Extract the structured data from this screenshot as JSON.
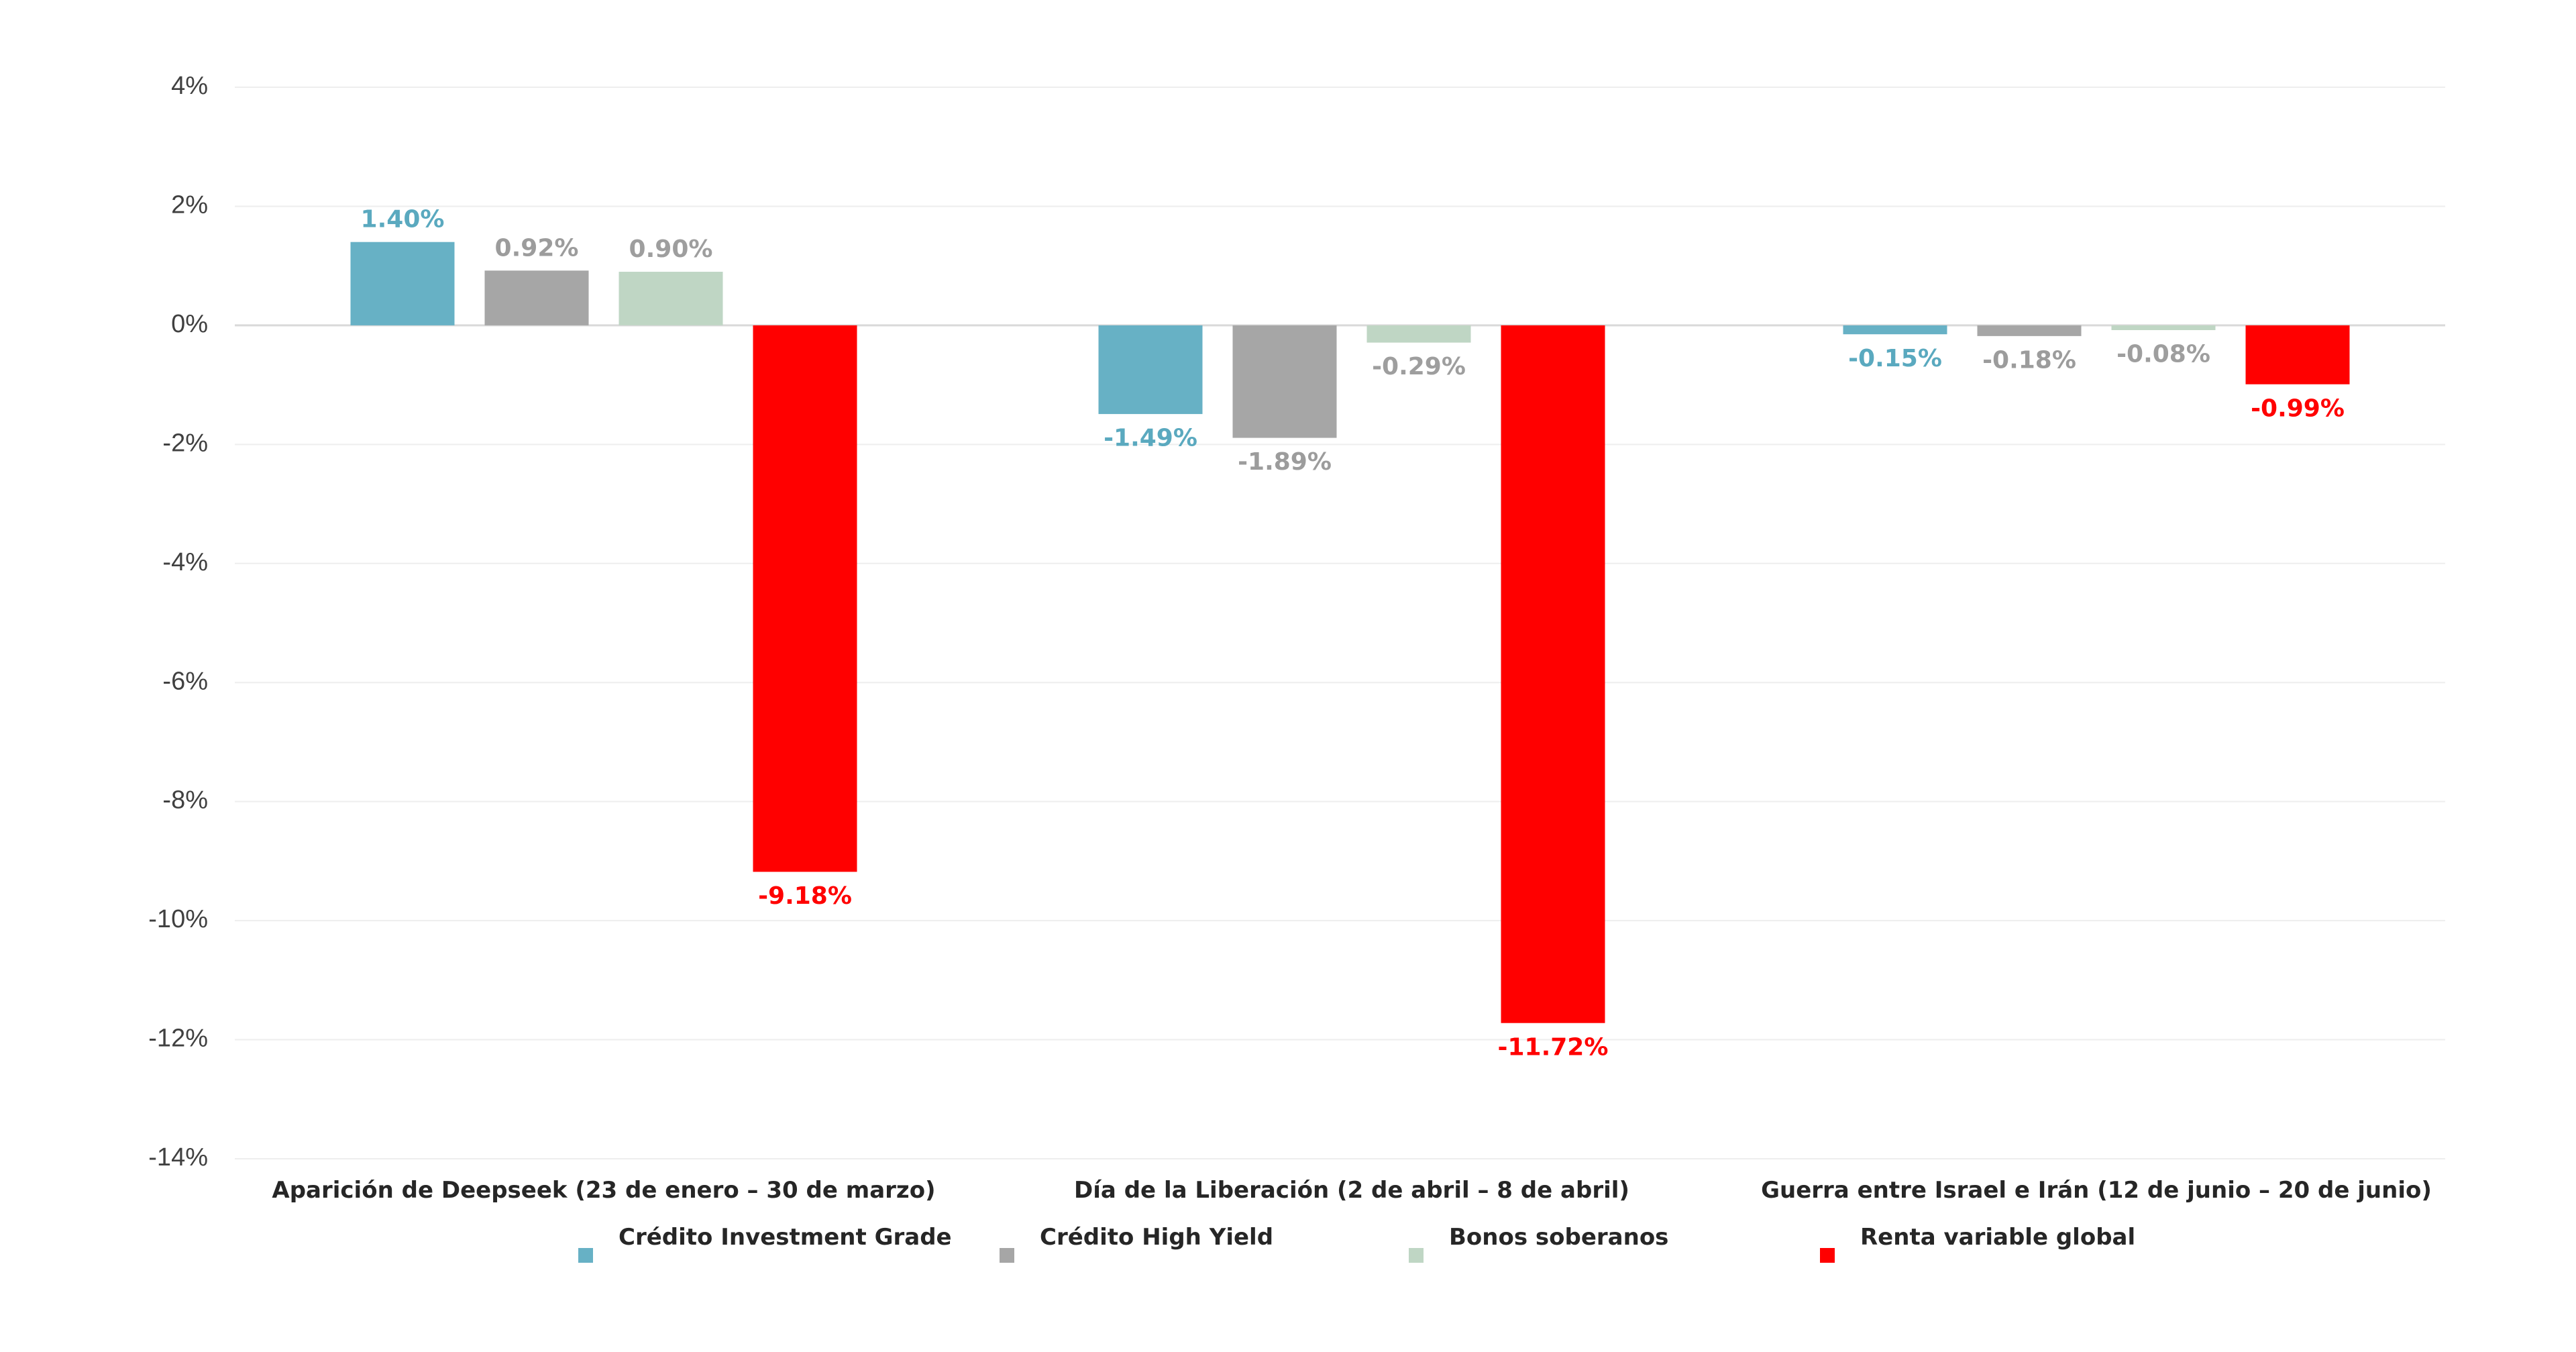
{
  "chart_data": {
    "type": "bar",
    "categories": [
      "Aparición de Deepseek (23 de enero – 30 de marzo)",
      "Día de la Liberación (2 de abril – 8 de abril)",
      "Guerra entre Israel e Irán (12  de junio – 20 de junio)"
    ],
    "series": [
      {
        "name": "Crédito Investment Grade",
        "color": "#67b1c5",
        "label_color": "#5aa9bf",
        "values": [
          1.4,
          -1.49,
          -0.15
        ],
        "labels": [
          "1.40%",
          "-1.49%",
          "-0.15%"
        ]
      },
      {
        "name": "Crédito High Yield",
        "color": "#a6a6a6",
        "label_color": "#9c9c9c",
        "values": [
          0.92,
          -1.89,
          -0.18
        ],
        "labels": [
          "0.92%",
          "-1.89%",
          "-0.18%"
        ]
      },
      {
        "name": "Bonos soberanos",
        "color": "#bfd6c4",
        "label_color": "#9e9e9e",
        "values": [
          0.9,
          -0.29,
          -0.08
        ],
        "labels": [
          "0.90%",
          "-0.29%",
          "-0.08%"
        ]
      },
      {
        "name": "Renta variable global",
        "color": "#ff0000",
        "label_color": "#ff0000",
        "values": [
          -9.18,
          -11.72,
          -0.99
        ],
        "labels": [
          "-9.18%",
          "-11.72%",
          "-0.99%"
        ]
      }
    ],
    "yticks": [
      4,
      2,
      0,
      -2,
      -4,
      -6,
      -8,
      -10,
      -12,
      -14
    ],
    "ytick_labels": [
      "4%",
      "2%",
      "0%",
      "-2%",
      "-4%",
      "-6%",
      "-8%",
      "-10%",
      "-12%",
      "-14%"
    ],
    "ylim": [
      -14,
      4
    ],
    "grid": true,
    "legend_position": "bottom",
    "title": "",
    "xlabel": "",
    "ylabel": ""
  }
}
